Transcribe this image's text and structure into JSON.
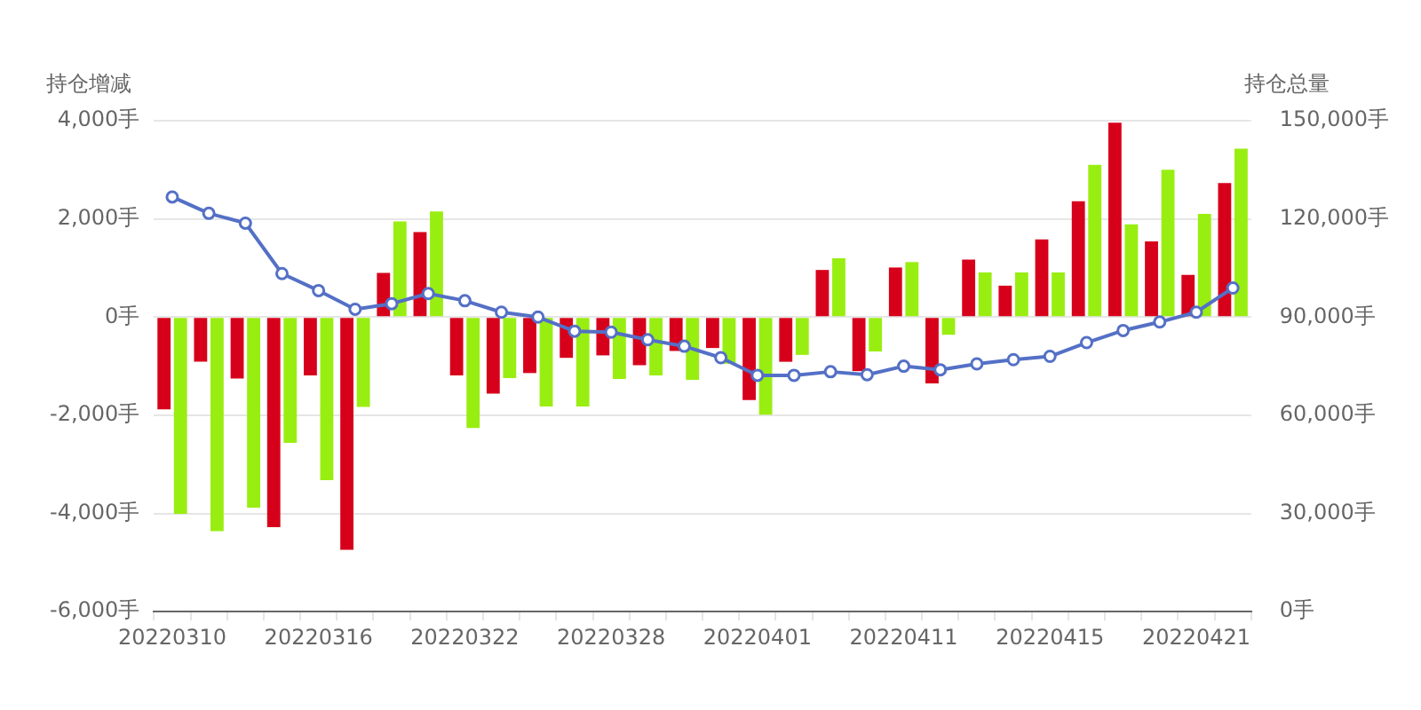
{
  "chart_data": {
    "type": "bar",
    "ylabel": "持仓增减",
    "y2label": "持仓总量",
    "categories": [
      "20220310",
      null,
      null,
      null,
      "20220316",
      null,
      null,
      null,
      "20220322",
      null,
      null,
      null,
      "20220328",
      null,
      null,
      null,
      "20220401",
      null,
      null,
      null,
      "20220411",
      null,
      null,
      null,
      "20220415",
      null,
      null,
      null,
      "20220421",
      null
    ],
    "series": [
      {
        "color": "#d7001b",
        "values": [
          -1880,
          -910,
          -1250,
          -4280,
          -1190,
          -4740,
          900,
          1730,
          -1190,
          -1560,
          -1140,
          -830,
          -780,
          -980,
          -690,
          -630,
          -1690,
          -910,
          960,
          -1100,
          1010,
          -1350,
          1170,
          640,
          1580,
          2360,
          3960,
          1540,
          860,
          2730
        ]
      },
      {
        "color": "#99ee11",
        "values": [
          -4010,
          -4360,
          -3880,
          -2560,
          -3320,
          -1830,
          1950,
          2150,
          -2260,
          -1240,
          -1820,
          -1820,
          -1260,
          -1190,
          -1280,
          -950,
          -1990,
          -770,
          1200,
          -700,
          1120,
          -360,
          910,
          910,
          910,
          3100,
          1890,
          3000,
          2100,
          3430
        ]
      },
      {
        "type": "line",
        "axis": "y2",
        "color": "#5470c6",
        "values": [
          126700,
          121700,
          118700,
          103300,
          98100,
          92400,
          94100,
          97200,
          95000,
          91500,
          90000,
          85700,
          85400,
          83100,
          81100,
          77600,
          72200,
          72200,
          73300,
          72400,
          75000,
          73900,
          75700,
          77000,
          78000,
          82200,
          85900,
          88500,
          91500,
          98900
        ]
      }
    ],
    "marker": "circle",
    "grid": "y",
    "ylim": [
      -6000,
      4000
    ],
    "yticks": [
      {
        "value": -6000,
        "label": "-6,000手"
      },
      {
        "value": -4000,
        "label": "-4,000手"
      },
      {
        "value": -2000,
        "label": "-2,000手"
      },
      {
        "value": 0,
        "label": "0手"
      },
      {
        "value": 2000,
        "label": "2,000手"
      },
      {
        "value": 4000,
        "label": "4,000手"
      }
    ],
    "y2lim": [
      0,
      150000
    ],
    "y2ticks": [
      {
        "value": 0,
        "label": "0手"
      },
      {
        "value": 30000,
        "label": "30,000手"
      },
      {
        "value": 60000,
        "label": "60,000手"
      },
      {
        "value": 90000,
        "label": "90,000手"
      },
      {
        "value": 120000,
        "label": "120,000手"
      },
      {
        "value": 150000,
        "label": "150,000手"
      }
    ]
  }
}
